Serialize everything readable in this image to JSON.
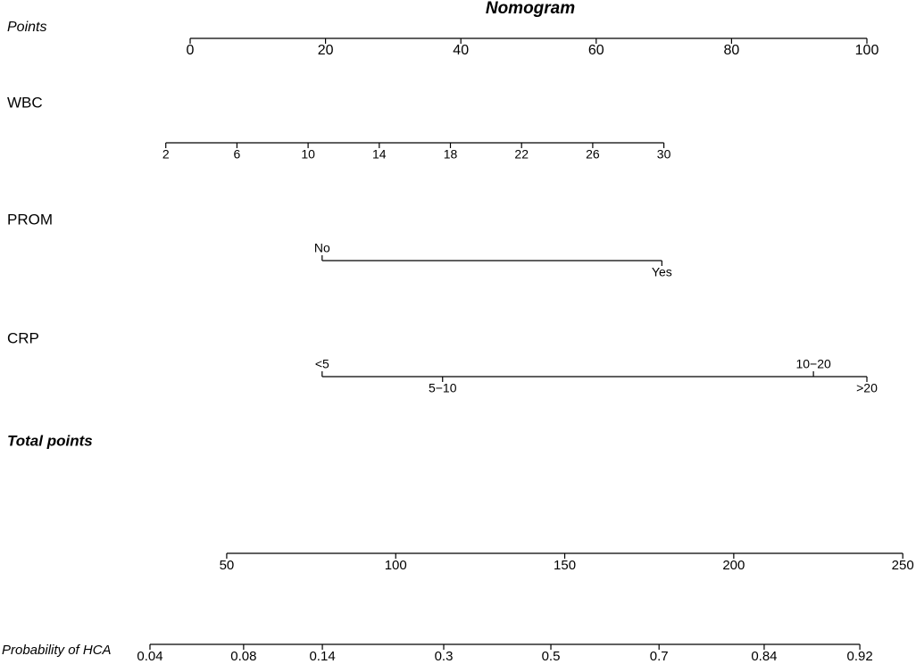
{
  "chart_data": {
    "type": "nomogram",
    "title": "Nomogram",
    "points": {
      "label": "Points",
      "xlim": [
        0,
        100
      ],
      "xticks": [
        0,
        20,
        40,
        60,
        80,
        100
      ]
    },
    "variables": [
      {
        "name": "WBC",
        "xlim": [
          2,
          30
        ],
        "points": [
          -3.6,
          70.0
        ],
        "xticks": [
          2,
          6,
          10,
          14,
          18,
          22,
          26,
          30
        ]
      },
      {
        "name": "PROM",
        "categories": [
          "No",
          "Yes"
        ],
        "points": [
          19.5,
          69.7
        ]
      },
      {
        "name": "CRP",
        "categories": [
          "<5",
          "5−10",
          "10−20",
          ">20"
        ],
        "points": [
          19.5,
          37.3,
          92.1,
          100.0
        ]
      }
    ],
    "total_points": {
      "label": "Total points",
      "xlim": [
        50,
        250
      ],
      "points": [
        5.4,
        105.3
      ],
      "xticks": [
        50,
        100,
        150,
        200,
        250
      ]
    },
    "probability": {
      "label": "Probability of HCA",
      "xticks": [
        0.04,
        0.08,
        0.14,
        0.3,
        0.5,
        0.7,
        0.84,
        0.92
      ],
      "total_points": [
        27.3,
        55.0,
        78.3,
        114.2,
        145.9,
        177.9,
        209.0,
        237.3
      ]
    }
  }
}
